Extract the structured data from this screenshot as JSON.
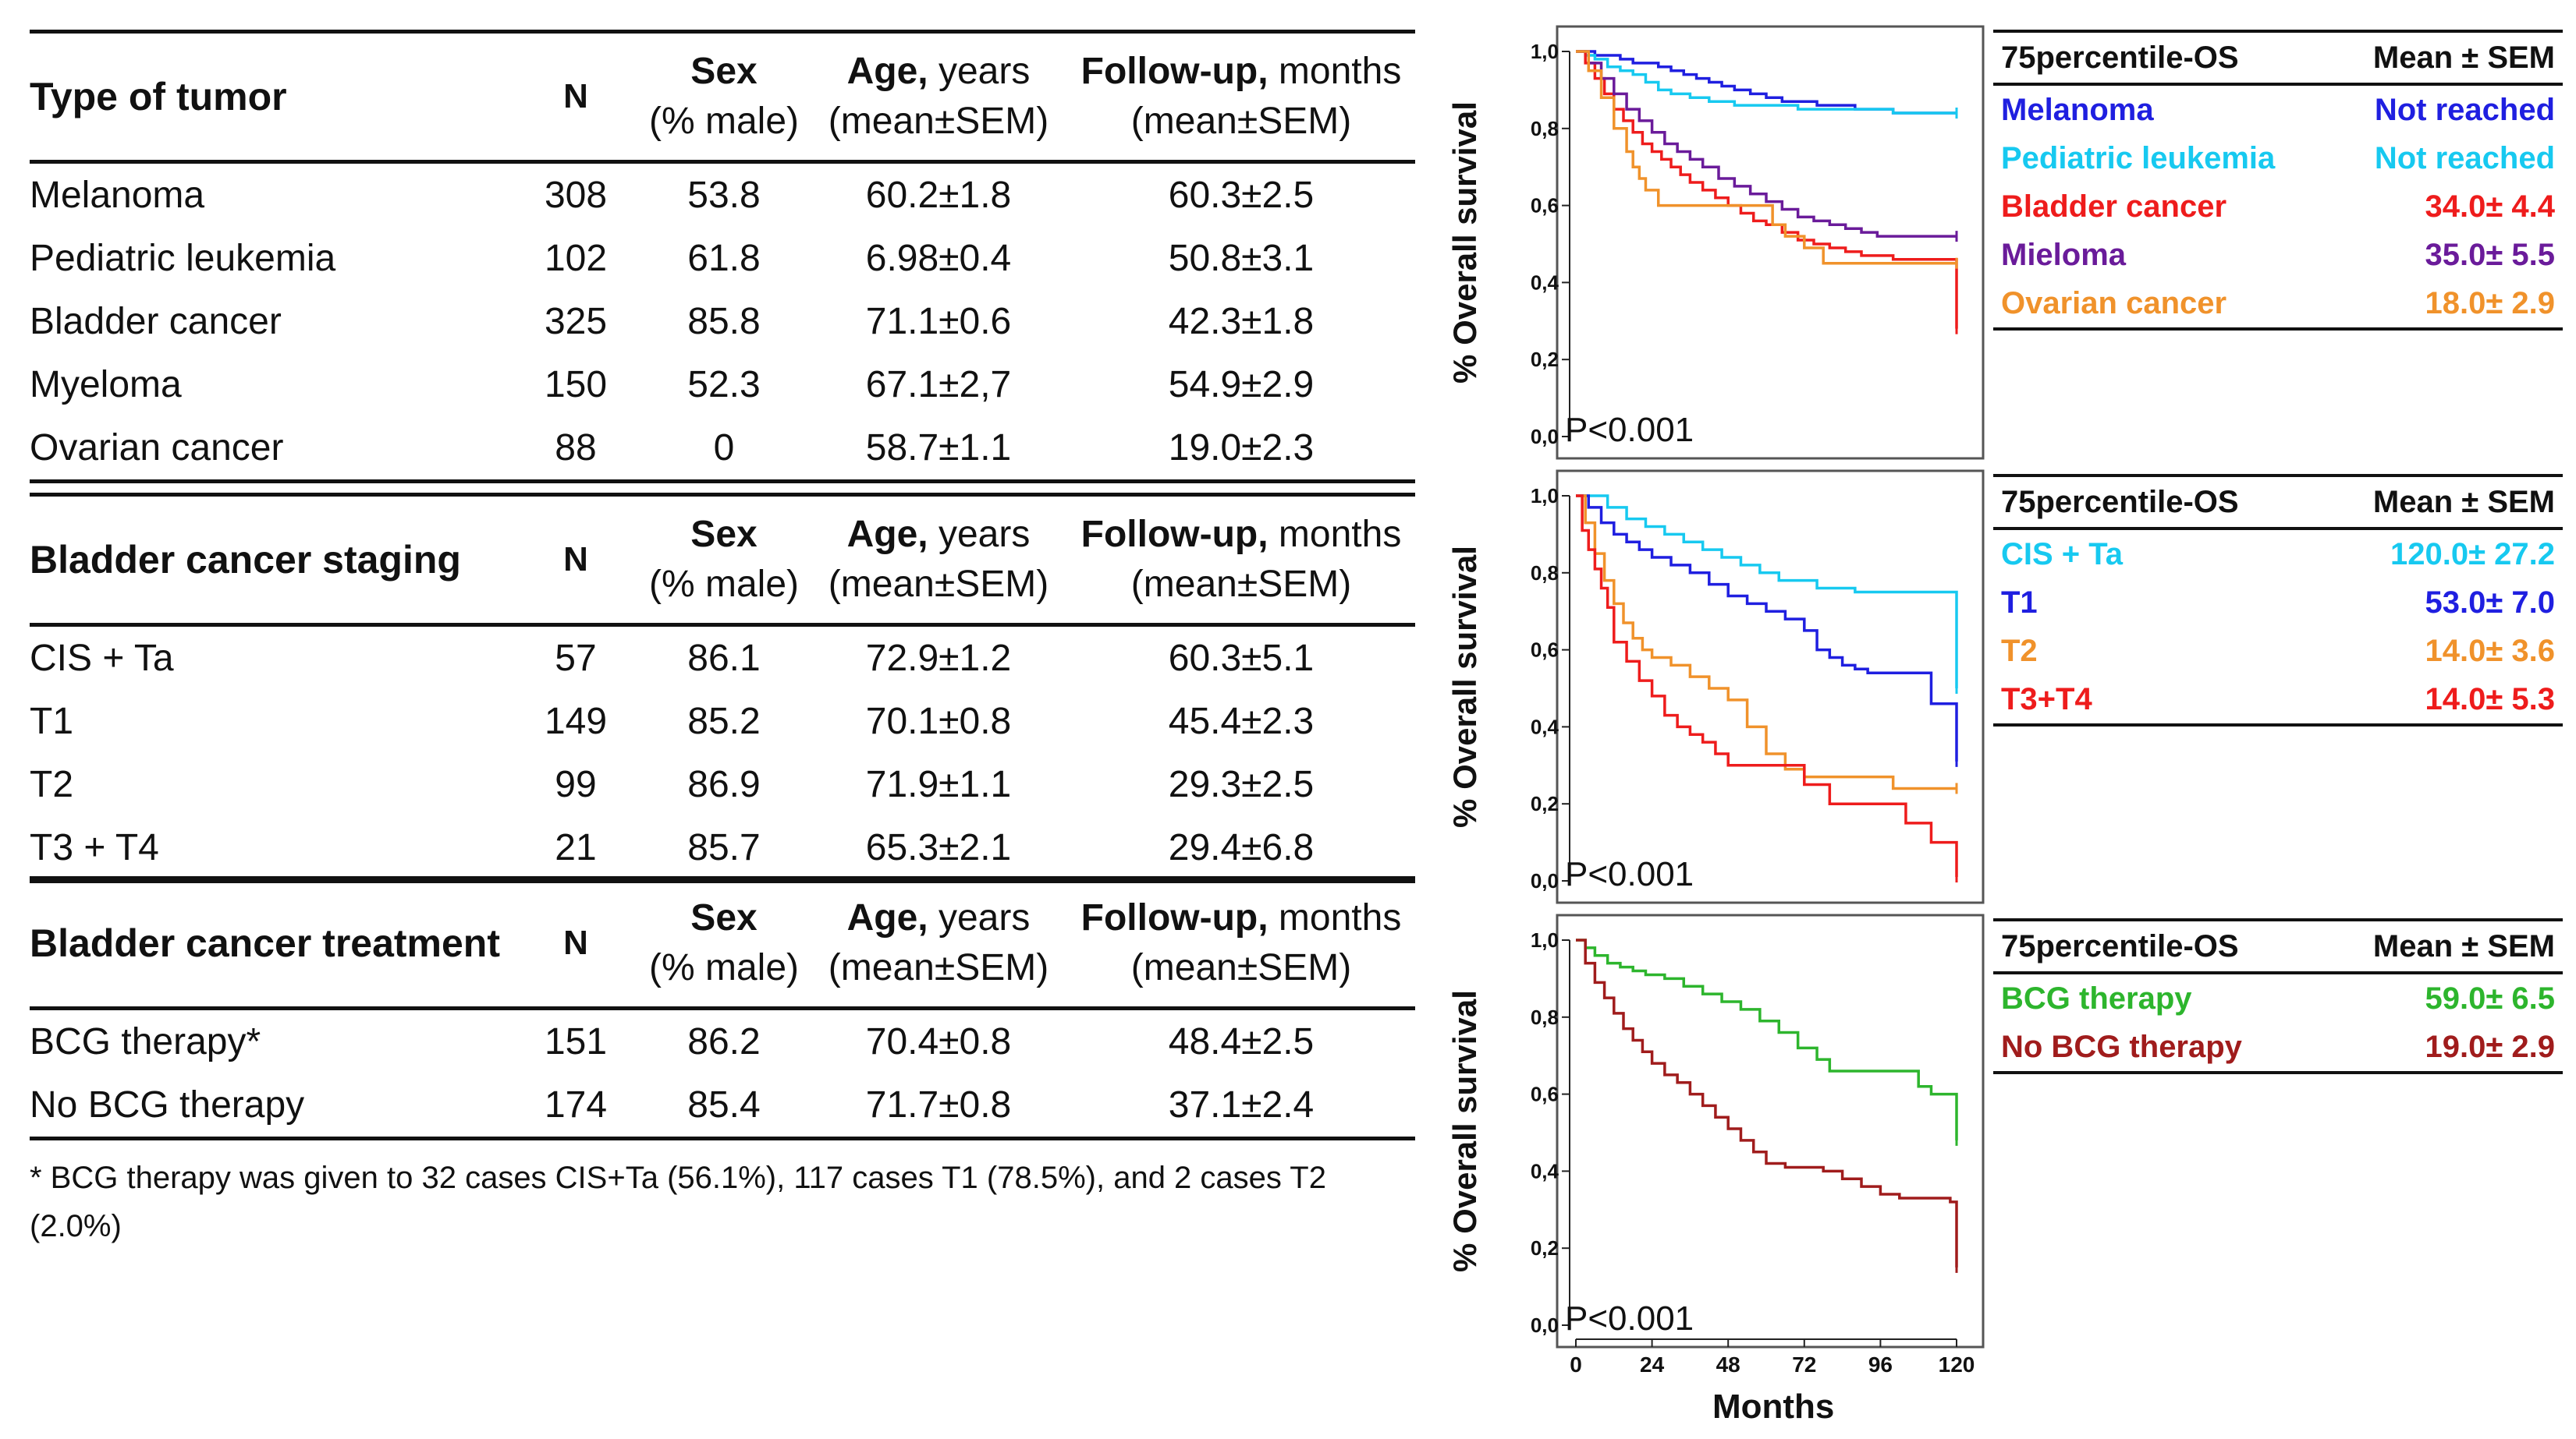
{
  "tables": [
    {
      "header": {
        "title": "Type of tumor",
        "n": "N",
        "sex_bold": "Sex",
        "sex_sub": "(% male)",
        "age_bold": "Age,",
        "age_rest": " years",
        "age_sub": "(mean±SEM)",
        "fu_bold": "Follow-up,",
        "fu_rest": " months",
        "fu_sub": "(mean±SEM)"
      },
      "rows": [
        {
          "name": "Melanoma",
          "n": "308",
          "sex": "53.8",
          "age": "60.2±1.8",
          "fu": "60.3±2.5"
        },
        {
          "name": "Pediatric leukemia",
          "n": "102",
          "sex": "61.8",
          "age": "6.98±0.4",
          "fu": "50.8±3.1"
        },
        {
          "name": "Bladder cancer",
          "n": "325",
          "sex": "85.8",
          "age": "71.1±0.6",
          "fu": "42.3±1.8"
        },
        {
          "name": "Myeloma",
          "n": "150",
          "sex": "52.3",
          "age": "67.1±2,7",
          "fu": "54.9±2.9"
        },
        {
          "name": "Ovarian cancer",
          "n": "88",
          "sex": "0",
          "age": "58.7±1.1",
          "fu": "19.0±2.3"
        }
      ]
    },
    {
      "header": {
        "title": "Bladder cancer staging",
        "n": "N",
        "sex_bold": "Sex",
        "sex_sub": "(% male)",
        "age_bold": "Age,",
        "age_rest": " years",
        "age_sub": "(mean±SEM)",
        "fu_bold": "Follow-up,",
        "fu_rest": " months",
        "fu_sub": "(mean±SEM)"
      },
      "rows": [
        {
          "name": "CIS + Ta",
          "n": "57",
          "sex": "86.1",
          "age": "72.9±1.2",
          "fu": "60.3±5.1"
        },
        {
          "name": "T1",
          "n": "149",
          "sex": "85.2",
          "age": "70.1±0.8",
          "fu": "45.4±2.3"
        },
        {
          "name": "T2",
          "n": "99",
          "sex": "86.9",
          "age": "71.9±1.1",
          "fu": "29.3±2.5"
        },
        {
          "name": "T3 + T4",
          "n": "21",
          "sex": "85.7",
          "age": "65.3±2.1",
          "fu": "29.4±6.8"
        }
      ]
    },
    {
      "header": {
        "title": "Bladder cancer treatment",
        "n": "N",
        "sex_bold": "Sex",
        "sex_sub": "(% male)",
        "age_bold": "Age,",
        "age_rest": " years",
        "age_sub": "(mean±SEM)",
        "fu_bold": "Follow-up,",
        "fu_rest": " months",
        "fu_sub": "(mean±SEM)"
      },
      "rows": [
        {
          "name": "BCG therapy*",
          "n": "151",
          "sex": "86.2",
          "age": "70.4±0.8",
          "fu": "48.4±2.5"
        },
        {
          "name": "No BCG therapy",
          "n": "174",
          "sex": "85.4",
          "age": "71.7±0.8",
          "fu": "37.1±2.4"
        }
      ]
    }
  ],
  "footnote": "* BCG therapy was given to 32 cases CIS+Ta (56.1%), 117 cases T1 (78.5%), and 2 cases T2 (2.0%)",
  "x_axis_label": "Months",
  "chart_data": [
    {
      "type": "line",
      "ylabel": "% Overall survival",
      "annotation": "P<0.001",
      "ylim": [
        0,
        1
      ],
      "xlim": [
        0,
        120
      ],
      "yticks": [
        "0,0",
        "0,2",
        "0,4",
        "0,6",
        "0,8",
        "1,0"
      ],
      "xticks": [],
      "series": [
        {
          "name": "Melanoma",
          "color": "#1f1fe0",
          "x": [
            0,
            3,
            6,
            10,
            14,
            18,
            22,
            26,
            30,
            34,
            38,
            42,
            46,
            50,
            55,
            60,
            65,
            70,
            76,
            82,
            88,
            94,
            100,
            106,
            112,
            118,
            120
          ],
          "y": [
            1,
            1,
            0.99,
            0.99,
            0.98,
            0.97,
            0.97,
            0.96,
            0.95,
            0.94,
            0.93,
            0.92,
            0.91,
            0.9,
            0.89,
            0.88,
            0.87,
            0.87,
            0.86,
            0.86,
            0.85,
            0.85,
            0.84,
            0.84,
            0.84,
            0.84,
            0.84
          ]
        },
        {
          "name": "Pediatric leukemia",
          "color": "#17c9f0",
          "x": [
            0,
            3,
            6,
            10,
            14,
            18,
            22,
            26,
            30,
            36,
            42,
            50,
            60,
            70,
            80,
            90,
            100,
            110,
            120
          ],
          "y": [
            1,
            0.99,
            0.98,
            0.96,
            0.95,
            0.94,
            0.92,
            0.9,
            0.89,
            0.88,
            0.87,
            0.86,
            0.86,
            0.85,
            0.85,
            0.85,
            0.84,
            0.84,
            0.84
          ]
        },
        {
          "name": "Bladder cancer",
          "color": "#ee1c1c",
          "x": [
            0,
            3,
            6,
            9,
            12,
            15,
            18,
            21,
            24,
            27,
            30,
            33,
            36,
            40,
            44,
            48,
            52,
            56,
            60,
            65,
            70,
            75,
            80,
            85,
            90,
            95,
            100,
            105,
            110,
            115,
            118,
            120
          ],
          "y": [
            1,
            0.97,
            0.93,
            0.89,
            0.85,
            0.82,
            0.79,
            0.76,
            0.74,
            0.72,
            0.7,
            0.68,
            0.66,
            0.64,
            0.62,
            0.6,
            0.58,
            0.56,
            0.55,
            0.53,
            0.51,
            0.5,
            0.49,
            0.48,
            0.47,
            0.47,
            0.46,
            0.46,
            0.46,
            0.46,
            0.46,
            0.28
          ]
        },
        {
          "name": "Mieloma",
          "color": "#6a1b9a",
          "x": [
            0,
            4,
            8,
            12,
            16,
            20,
            24,
            28,
            32,
            36,
            40,
            45,
            50,
            55,
            60,
            65,
            70,
            75,
            80,
            85,
            90,
            95,
            100,
            110,
            120
          ],
          "y": [
            1,
            0.97,
            0.93,
            0.89,
            0.85,
            0.82,
            0.79,
            0.76,
            0.74,
            0.72,
            0.7,
            0.67,
            0.65,
            0.63,
            0.61,
            0.59,
            0.57,
            0.56,
            0.55,
            0.54,
            0.53,
            0.52,
            0.52,
            0.52,
            0.52
          ]
        },
        {
          "name": "Ovarian cancer",
          "color": "#f0922b",
          "x": [
            0,
            4,
            8,
            12,
            16,
            18,
            20,
            22,
            26,
            30,
            34,
            40,
            46,
            52,
            58,
            62,
            66,
            72,
            78,
            84,
            90,
            100,
            110,
            120
          ],
          "y": [
            1,
            0.95,
            0.88,
            0.8,
            0.74,
            0.7,
            0.67,
            0.64,
            0.6,
            0.6,
            0.6,
            0.6,
            0.6,
            0.6,
            0.6,
            0.55,
            0.52,
            0.49,
            0.45,
            0.45,
            0.45,
            0.45,
            0.45,
            0.45
          ]
        }
      ]
    },
    {
      "type": "line",
      "ylabel": "% Overall survival",
      "annotation": "P<0.001",
      "ylim": [
        0,
        1
      ],
      "xlim": [
        0,
        120
      ],
      "yticks": [
        "0,0",
        "0,2",
        "0,4",
        "0,6",
        "0,8",
        "1,0"
      ],
      "xticks": [],
      "series": [
        {
          "name": "CIS + Ta",
          "color": "#17c9f0",
          "x": [
            0,
            5,
            10,
            16,
            22,
            28,
            34,
            40,
            46,
            52,
            58,
            64,
            70,
            76,
            82,
            88,
            94,
            100,
            106,
            112,
            118,
            119,
            120
          ],
          "y": [
            1,
            1,
            0.97,
            0.94,
            0.92,
            0.9,
            0.88,
            0.86,
            0.84,
            0.82,
            0.8,
            0.78,
            0.78,
            0.76,
            0.76,
            0.75,
            0.75,
            0.75,
            0.75,
            0.75,
            0.75,
            0.75,
            0.5
          ]
        },
        {
          "name": "T1",
          "color": "#1f1fe0",
          "x": [
            0,
            4,
            8,
            12,
            16,
            20,
            24,
            30,
            36,
            42,
            48,
            54,
            60,
            66,
            72,
            76,
            80,
            84,
            88,
            92,
            96,
            100,
            106,
            112,
            118,
            120
          ],
          "y": [
            1,
            0.97,
            0.93,
            0.9,
            0.88,
            0.86,
            0.84,
            0.82,
            0.8,
            0.77,
            0.74,
            0.72,
            0.7,
            0.68,
            0.65,
            0.6,
            0.58,
            0.56,
            0.55,
            0.54,
            0.54,
            0.54,
            0.54,
            0.46,
            0.46,
            0.31
          ]
        },
        {
          "name": "T2",
          "color": "#f0922b",
          "x": [
            0,
            3,
            6,
            9,
            12,
            15,
            18,
            21,
            24,
            30,
            36,
            42,
            48,
            54,
            60,
            66,
            72,
            80,
            90,
            100,
            110,
            120
          ],
          "y": [
            1,
            0.93,
            0.85,
            0.78,
            0.72,
            0.67,
            0.63,
            0.6,
            0.58,
            0.56,
            0.53,
            0.5,
            0.47,
            0.4,
            0.33,
            0.29,
            0.27,
            0.27,
            0.27,
            0.24,
            0.24,
            0.24
          ]
        },
        {
          "name": "T3+T4",
          "color": "#ee1c1c",
          "x": [
            0,
            2,
            4,
            6,
            8,
            10,
            12,
            16,
            20,
            24,
            28,
            32,
            36,
            40,
            44,
            48,
            56,
            64,
            72,
            80,
            88,
            96,
            104,
            112,
            120
          ],
          "y": [
            1,
            0.91,
            0.86,
            0.81,
            0.76,
            0.71,
            0.62,
            0.57,
            0.52,
            0.48,
            0.43,
            0.4,
            0.38,
            0.36,
            0.33,
            0.3,
            0.3,
            0.3,
            0.25,
            0.2,
            0.2,
            0.2,
            0.15,
            0.1,
            0.01
          ]
        }
      ]
    },
    {
      "type": "line",
      "ylabel": "% Overall survival",
      "annotation": "P<0.001",
      "ylim": [
        0,
        1
      ],
      "xlim": [
        0,
        120
      ],
      "yticks": [
        "0,0",
        "0,2",
        "0,4",
        "0,6",
        "0,8",
        "1,0"
      ],
      "xticks": [
        "0",
        "24",
        "48",
        "72",
        "96",
        "120"
      ],
      "series": [
        {
          "name": "BCG therapy",
          "color": "#2db52d",
          "x": [
            0,
            3,
            6,
            10,
            14,
            18,
            22,
            28,
            34,
            40,
            46,
            52,
            58,
            64,
            70,
            76,
            80,
            84,
            90,
            96,
            102,
            108,
            112,
            116,
            118,
            120
          ],
          "y": [
            1,
            0.98,
            0.96,
            0.94,
            0.93,
            0.92,
            0.91,
            0.9,
            0.88,
            0.86,
            0.84,
            0.82,
            0.79,
            0.76,
            0.72,
            0.69,
            0.66,
            0.66,
            0.66,
            0.66,
            0.66,
            0.62,
            0.6,
            0.6,
            0.6,
            0.48
          ]
        },
        {
          "name": "No BCG therapy",
          "color": "#a01c1c",
          "x": [
            0,
            3,
            6,
            9,
            12,
            15,
            18,
            21,
            24,
            28,
            32,
            36,
            40,
            44,
            48,
            52,
            56,
            60,
            66,
            72,
            78,
            84,
            90,
            96,
            102,
            108,
            114,
            118,
            120
          ],
          "y": [
            1,
            0.94,
            0.89,
            0.85,
            0.81,
            0.77,
            0.74,
            0.71,
            0.68,
            0.65,
            0.63,
            0.6,
            0.57,
            0.54,
            0.51,
            0.48,
            0.45,
            0.42,
            0.41,
            0.41,
            0.4,
            0.38,
            0.36,
            0.34,
            0.33,
            0.33,
            0.33,
            0.32,
            0.15
          ]
        }
      ]
    }
  ],
  "legends": [
    {
      "header_name": "75percentile-OS",
      "header_val": "Mean ± SEM",
      "rows": [
        {
          "name": "Melanoma",
          "val": "Not reached",
          "color": "#1f1fe0"
        },
        {
          "name": "Pediatric leukemia",
          "val": "Not reached",
          "color": "#17c9f0"
        },
        {
          "name": "Bladder cancer",
          "val": "34.0± 4.4",
          "color": "#ee1c1c"
        },
        {
          "name": "Mieloma",
          "val": "35.0± 5.5",
          "color": "#6a1b9a"
        },
        {
          "name": "Ovarian cancer",
          "val": "18.0± 2.9",
          "color": "#f0922b"
        }
      ]
    },
    {
      "header_name": "75percentile-OS",
      "header_val": "Mean ± SEM",
      "rows": [
        {
          "name": "CIS + Ta",
          "val": "120.0± 27.2",
          "color": "#17c9f0"
        },
        {
          "name": "T1",
          "val": "53.0± 7.0",
          "color": "#1f1fe0"
        },
        {
          "name": "T2",
          "val": "14.0± 3.6",
          "color": "#f0922b"
        },
        {
          "name": "T3+T4",
          "val": "14.0± 5.3",
          "color": "#ee1c1c"
        }
      ]
    },
    {
      "header_name": "75percentile-OS",
      "header_val": "Mean ± SEM",
      "rows": [
        {
          "name": "BCG therapy",
          "val": "59.0± 6.5",
          "color": "#2db52d"
        },
        {
          "name": "No BCG therapy",
          "val": "19.0± 2.9",
          "color": "#a01c1c"
        }
      ]
    }
  ]
}
